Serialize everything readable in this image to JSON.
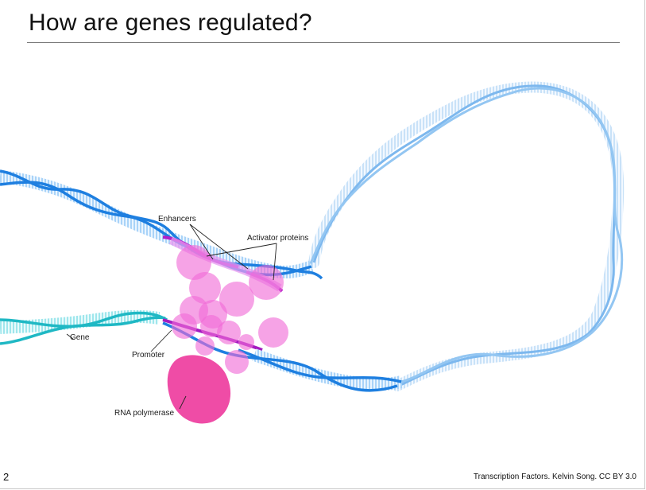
{
  "slide": {
    "title": "How are genes regulated?",
    "page_number": "2",
    "credit": "Transcription Factors. Kelvin Song. CC BY 3.0"
  },
  "diagram": {
    "labels": {
      "enhancers": "Enhancers",
      "activator_proteins": "Activator proteins",
      "gene": "Gene",
      "promoter": "Promoter",
      "rna_polymerase": "RNA polymerase"
    },
    "colors": {
      "dna_strand": "#1e7fe0",
      "dna_loop": "#7db8ee",
      "dna_rungs": "#bfe0fb",
      "gene_strand": "#1fb8c4",
      "gene_rungs": "#aeeef2",
      "enhancer_region": "#b01fc8",
      "activator_protein": "#f06ad6",
      "rna_polymerase": "#ee3d9e"
    }
  }
}
